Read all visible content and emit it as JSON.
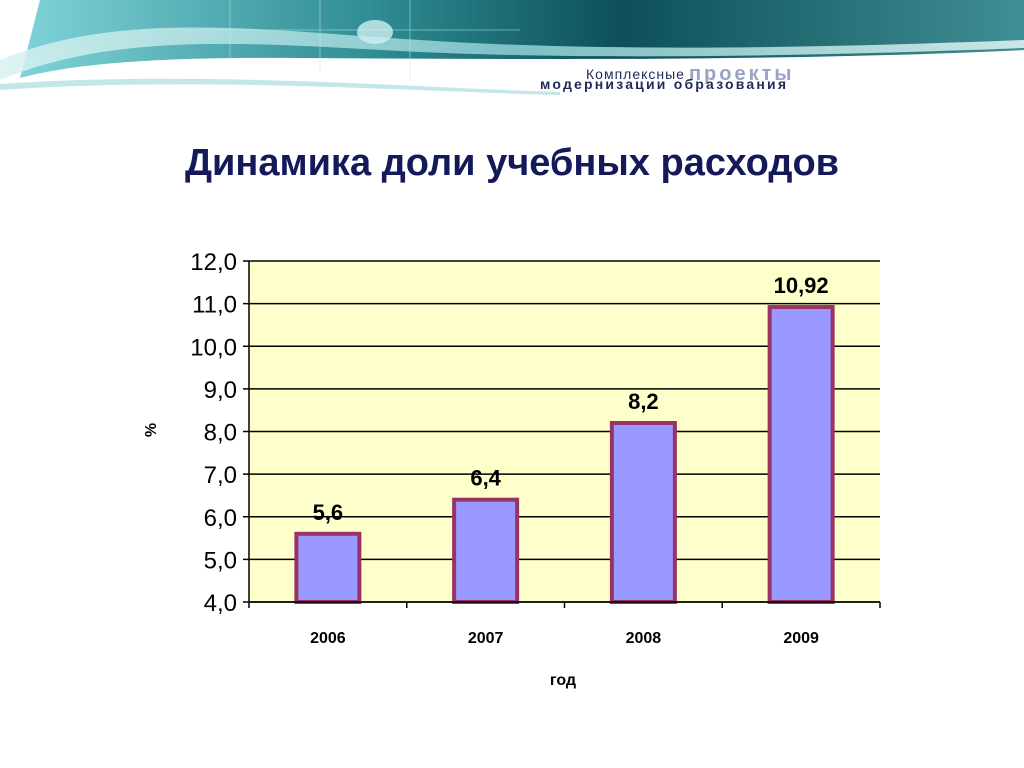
{
  "header": {
    "brand_line1_small": "Комплексные",
    "brand_line1_big": "проекты",
    "brand_line2": "модернизации образования"
  },
  "title": "Динамика доли учебных расходов",
  "chart_data": {
    "type": "bar",
    "title": "Динамика доли учебных расходов",
    "categories": [
      "2006",
      "2007",
      "2008",
      "2009"
    ],
    "values": [
      5.6,
      6.4,
      8.2,
      10.92
    ],
    "data_labels": [
      "5,6",
      "6,4",
      "8,2",
      "10,92"
    ],
    "xlabel": "год",
    "ylabel": "%",
    "ylim": [
      4.0,
      12.0
    ],
    "y_ticks": [
      {
        "value": 4,
        "label": "4,0"
      },
      {
        "value": 5,
        "label": "5,0"
      },
      {
        "value": 6,
        "label": "6,0"
      },
      {
        "value": 7,
        "label": "7,0"
      },
      {
        "value": 8,
        "label": "8,0"
      },
      {
        "value": 9,
        "label": "9,0"
      },
      {
        "value": 10,
        "label": "10,0"
      },
      {
        "value": 11,
        "label": "11,0"
      },
      {
        "value": 12,
        "label": "12,0"
      }
    ],
    "grid": true,
    "legend": "none",
    "colors": {
      "bar_fill": "#9999ff",
      "bar_stroke": "#993366",
      "plot_background": "#ffffcc"
    }
  }
}
